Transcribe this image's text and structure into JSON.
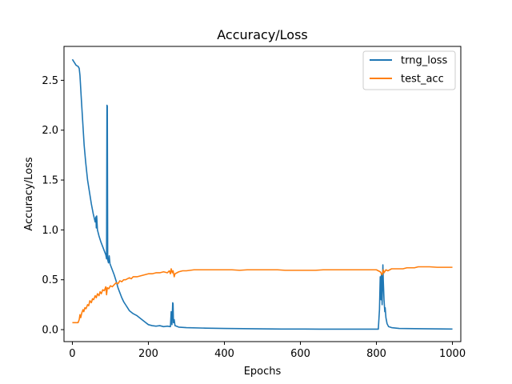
{
  "chart_data": {
    "type": "line",
    "title": "Accuracy/Loss",
    "xlabel": "Epochs",
    "ylabel": "Accuracy/Loss",
    "xlim": [
      -22,
      1022
    ],
    "ylim": [
      -0.12,
      2.84
    ],
    "xticks": [
      0,
      200,
      400,
      600,
      800,
      1000
    ],
    "yticks": [
      0.0,
      0.5,
      1.0,
      1.5,
      2.0,
      2.5
    ],
    "ytick_labels": [
      "0.0",
      "0.5",
      "1.0",
      "1.5",
      "2.0",
      "2.5"
    ],
    "grid": false,
    "legend_position": "top-right",
    "series": [
      {
        "name": "trng_loss",
        "color": "#1f77b4",
        "points": [
          [
            0,
            2.71
          ],
          [
            5,
            2.68
          ],
          [
            10,
            2.65
          ],
          [
            15,
            2.64
          ],
          [
            18,
            2.62
          ],
          [
            20,
            2.55
          ],
          [
            23,
            2.35
          ],
          [
            27,
            2.1
          ],
          [
            31,
            1.85
          ],
          [
            35,
            1.68
          ],
          [
            40,
            1.5
          ],
          [
            45,
            1.38
          ],
          [
            50,
            1.26
          ],
          [
            55,
            1.16
          ],
          [
            60,
            1.08
          ],
          [
            62,
            1.13
          ],
          [
            63,
            1.02
          ],
          [
            64,
            1.14
          ],
          [
            66,
            1.0
          ],
          [
            70,
            0.94
          ],
          [
            75,
            0.88
          ],
          [
            80,
            0.83
          ],
          [
            85,
            0.78
          ],
          [
            88,
            0.75
          ],
          [
            90,
            0.71
          ],
          [
            91,
            2.25
          ],
          [
            92,
            2.24
          ],
          [
            93,
            0.7
          ],
          [
            95,
            0.67
          ],
          [
            97,
            0.74
          ],
          [
            99,
            0.66
          ],
          [
            105,
            0.6
          ],
          [
            110,
            0.55
          ],
          [
            115,
            0.49
          ],
          [
            120,
            0.42
          ],
          [
            125,
            0.37
          ],
          [
            130,
            0.32
          ],
          [
            135,
            0.28
          ],
          [
            140,
            0.25
          ],
          [
            145,
            0.22
          ],
          [
            150,
            0.19
          ],
          [
            160,
            0.16
          ],
          [
            170,
            0.14
          ],
          [
            180,
            0.11
          ],
          [
            190,
            0.08
          ],
          [
            200,
            0.05
          ],
          [
            210,
            0.04
          ],
          [
            220,
            0.035
          ],
          [
            230,
            0.04
          ],
          [
            240,
            0.03
          ],
          [
            250,
            0.035
          ],
          [
            258,
            0.03
          ],
          [
            260,
            0.18
          ],
          [
            262,
            0.05
          ],
          [
            264,
            0.27
          ],
          [
            265,
            0.26
          ],
          [
            266,
            0.07
          ],
          [
            268,
            0.1
          ],
          [
            270,
            0.04
          ],
          [
            280,
            0.025
          ],
          [
            300,
            0.02
          ],
          [
            350,
            0.015
          ],
          [
            400,
            0.012
          ],
          [
            450,
            0.01
          ],
          [
            500,
            0.008
          ],
          [
            550,
            0.006
          ],
          [
            600,
            0.006
          ],
          [
            650,
            0.005
          ],
          [
            700,
            0.005
          ],
          [
            750,
            0.005
          ],
          [
            805,
            0.005
          ],
          [
            808,
            0.2
          ],
          [
            810,
            0.53
          ],
          [
            812,
            0.3
          ],
          [
            813,
            0.55
          ],
          [
            815,
            0.25
          ],
          [
            817,
            0.65
          ],
          [
            818,
            0.5
          ],
          [
            820,
            0.3
          ],
          [
            822,
            0.18
          ],
          [
            823,
            0.22
          ],
          [
            825,
            0.12
          ],
          [
            828,
            0.06
          ],
          [
            832,
            0.03
          ],
          [
            840,
            0.02
          ],
          [
            860,
            0.012
          ],
          [
            900,
            0.01
          ],
          [
            950,
            0.008
          ],
          [
            1000,
            0.006
          ]
        ]
      },
      {
        "name": "test_acc",
        "color": "#ff7f0e",
        "points": [
          [
            0,
            0.07
          ],
          [
            5,
            0.07
          ],
          [
            10,
            0.07
          ],
          [
            15,
            0.07
          ],
          [
            18,
            0.1
          ],
          [
            20,
            0.15
          ],
          [
            22,
            0.12
          ],
          [
            25,
            0.17
          ],
          [
            28,
            0.2
          ],
          [
            30,
            0.18
          ],
          [
            33,
            0.22
          ],
          [
            36,
            0.21
          ],
          [
            40,
            0.25
          ],
          [
            43,
            0.24
          ],
          [
            46,
            0.29
          ],
          [
            50,
            0.27
          ],
          [
            53,
            0.31
          ],
          [
            56,
            0.3
          ],
          [
            60,
            0.34
          ],
          [
            63,
            0.32
          ],
          [
            66,
            0.36
          ],
          [
            70,
            0.34
          ],
          [
            73,
            0.38
          ],
          [
            76,
            0.36
          ],
          [
            80,
            0.4
          ],
          [
            84,
            0.39
          ],
          [
            88,
            0.43
          ],
          [
            90,
            0.35
          ],
          [
            92,
            0.42
          ],
          [
            96,
            0.41
          ],
          [
            100,
            0.44
          ],
          [
            105,
            0.43
          ],
          [
            110,
            0.45
          ],
          [
            115,
            0.47
          ],
          [
            120,
            0.46
          ],
          [
            125,
            0.49
          ],
          [
            130,
            0.48
          ],
          [
            135,
            0.5
          ],
          [
            140,
            0.5
          ],
          [
            145,
            0.51
          ],
          [
            150,
            0.52
          ],
          [
            155,
            0.51
          ],
          [
            160,
            0.53
          ],
          [
            170,
            0.53
          ],
          [
            180,
            0.54
          ],
          [
            190,
            0.55
          ],
          [
            200,
            0.56
          ],
          [
            210,
            0.56
          ],
          [
            220,
            0.57
          ],
          [
            230,
            0.57
          ],
          [
            240,
            0.58
          ],
          [
            250,
            0.57
          ],
          [
            255,
            0.59
          ],
          [
            258,
            0.56
          ],
          [
            260,
            0.61
          ],
          [
            263,
            0.57
          ],
          [
            265,
            0.59
          ],
          [
            268,
            0.53
          ],
          [
            270,
            0.56
          ],
          [
            275,
            0.57
          ],
          [
            280,
            0.58
          ],
          [
            290,
            0.59
          ],
          [
            300,
            0.59
          ],
          [
            320,
            0.6
          ],
          [
            340,
            0.6
          ],
          [
            360,
            0.6
          ],
          [
            380,
            0.6
          ],
          [
            400,
            0.6
          ],
          [
            420,
            0.6
          ],
          [
            440,
            0.595
          ],
          [
            460,
            0.6
          ],
          [
            480,
            0.6
          ],
          [
            500,
            0.6
          ],
          [
            520,
            0.6
          ],
          [
            540,
            0.6
          ],
          [
            560,
            0.595
          ],
          [
            580,
            0.595
          ],
          [
            600,
            0.595
          ],
          [
            620,
            0.595
          ],
          [
            640,
            0.595
          ],
          [
            660,
            0.6
          ],
          [
            680,
            0.6
          ],
          [
            700,
            0.6
          ],
          [
            720,
            0.6
          ],
          [
            740,
            0.6
          ],
          [
            760,
            0.6
          ],
          [
            780,
            0.6
          ],
          [
            800,
            0.6
          ],
          [
            810,
            0.58
          ],
          [
            815,
            0.55
          ],
          [
            818,
            0.6
          ],
          [
            820,
            0.57
          ],
          [
            825,
            0.6
          ],
          [
            830,
            0.59
          ],
          [
            840,
            0.61
          ],
          [
            850,
            0.61
          ],
          [
            860,
            0.61
          ],
          [
            870,
            0.61
          ],
          [
            880,
            0.62
          ],
          [
            890,
            0.62
          ],
          [
            900,
            0.62
          ],
          [
            910,
            0.63
          ],
          [
            920,
            0.63
          ],
          [
            940,
            0.63
          ],
          [
            960,
            0.625
          ],
          [
            980,
            0.625
          ],
          [
            1000,
            0.625
          ]
        ]
      }
    ]
  }
}
